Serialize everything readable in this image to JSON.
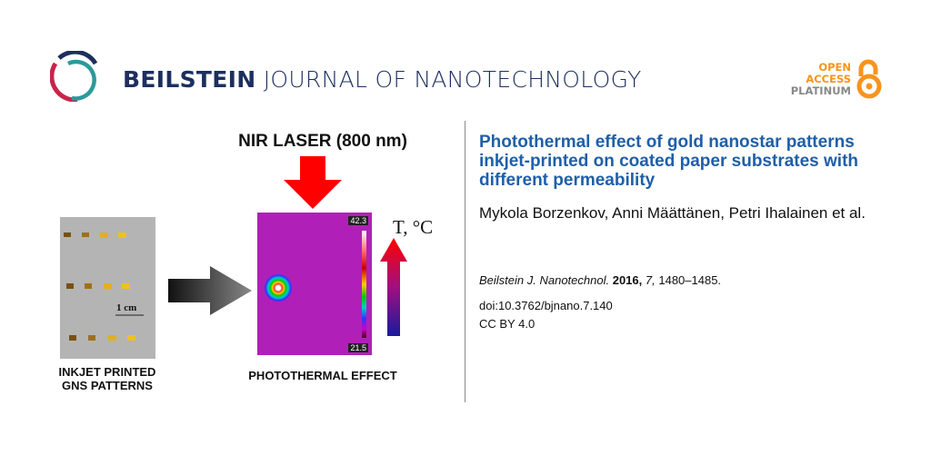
{
  "header": {
    "journal_bold": "BEILSTEIN",
    "journal_rest": "JOURNAL OF NANOTECHNOLOGY",
    "open_access": {
      "line1": "OPEN",
      "line2": "ACCESS",
      "line3": "PLATINUM"
    },
    "colors": {
      "journal_navy": "#1c2f5e",
      "logo_red": "#c8244a",
      "logo_teal": "#2a9a9a",
      "oa_orange": "#f7941d",
      "oa_gray": "#888888"
    }
  },
  "graphical_abstract": {
    "laser_label": "NIR LASER (800 nm)",
    "scale_label": "1 cm",
    "colorbar_max": "42.3",
    "colorbar_min": "21.5",
    "temperature_label": "T, °C",
    "left_caption_line1": "INKJET PRINTED",
    "left_caption_line2": "GNS PATTERNS",
    "right_caption": "PHOTOTHERMAL EFFECT"
  },
  "article": {
    "title": "Photothermal effect of gold nanostar patterns inkjet-printed on coated paper substrates with different permeability",
    "authors": "Mykola Borzenkov, Anni Määttänen, Petri Ihalainen et al.",
    "journal_abbrev": "Beilstein J. Nanotechnol.",
    "year": "2016,",
    "volume": "7,",
    "pages": "1480–1485.",
    "doi": "doi:10.3762/bjnano.7.140",
    "license": "CC BY 4.0",
    "title_color": "#1f5fa8"
  }
}
